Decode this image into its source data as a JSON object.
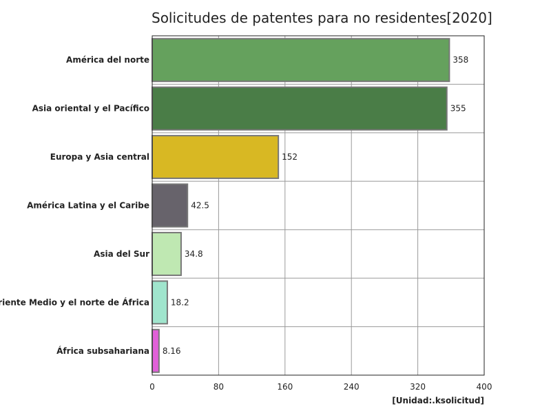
{
  "chart_data": {
    "type": "bar",
    "orientation": "horizontal",
    "title": "Solicitudes de patentes para no residentes[2020]",
    "unit_label": "[Unidad:.ksolicitud]",
    "categories": [
      "América del norte",
      "Asia oriental y el Pacífico",
      "Europa y Asia central",
      "América Latina y el Caribe",
      "Asia del Sur",
      "Oriente Medio y el norte de África",
      "África subsahariana"
    ],
    "values": [
      358,
      355,
      152,
      42.5,
      34.8,
      18.2,
      8.16
    ],
    "value_labels": [
      "358",
      "355",
      "152",
      "42.5",
      "34.8",
      "18.2",
      "8.16"
    ],
    "colors": [
      "#65a15d",
      "#4a7d47",
      "#d8b823",
      "#67636b",
      "#bfe8b2",
      "#a0e5cd",
      "#e060d8"
    ],
    "xlim": [
      0,
      400
    ],
    "xticks": [
      0,
      80,
      160,
      240,
      320,
      400
    ],
    "xtick_labels": [
      "0",
      "80",
      "160",
      "240",
      "320",
      "400"
    ],
    "grid": true,
    "legend": "none"
  }
}
